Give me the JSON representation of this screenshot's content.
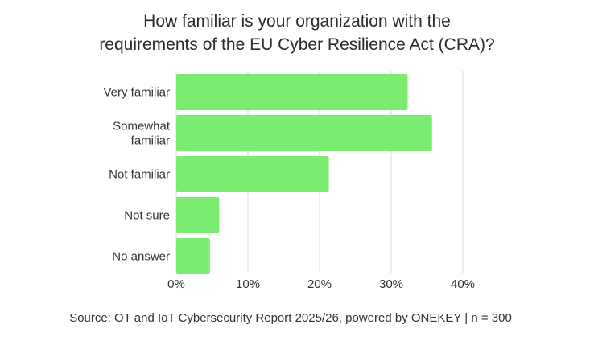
{
  "chart_data": {
    "type": "bar",
    "orientation": "horizontal",
    "title_lines": [
      "How familiar is your organization with the",
      "requirements of the EU Cyber Resilience Act (CRA)?"
    ],
    "category_lines": [
      [
        "Very familiar"
      ],
      [
        "Somewhat",
        "familiar"
      ],
      [
        "Not familiar"
      ],
      [
        "Not sure"
      ],
      [
        "No answer"
      ]
    ],
    "values": [
      32.3,
      35.7,
      21.3,
      6.0,
      4.7
    ],
    "xticks": [
      "0%",
      "10%",
      "20%",
      "30%",
      "40%"
    ],
    "xlim": [
      0,
      40
    ],
    "grid": true,
    "bar_color": "#7aec6f",
    "source": "Source: OT and IoT Cybersecurity Report 2025/26, powered by ONEKEY | n = 300"
  }
}
